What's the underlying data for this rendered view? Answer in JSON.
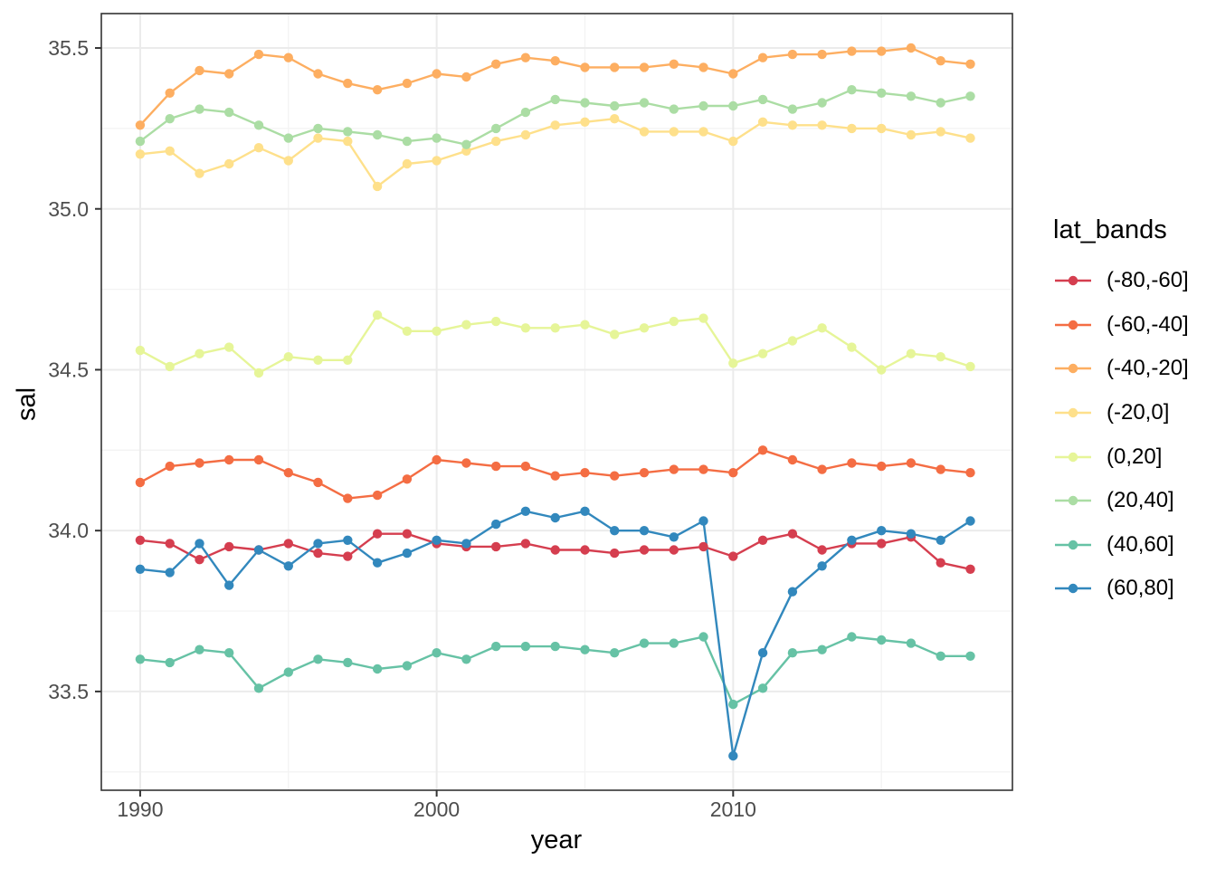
{
  "figure": {
    "background": "#ffffff"
  },
  "chart_data": {
    "type": "line",
    "title": "",
    "xlabel": "year",
    "ylabel": "sal",
    "legend_title": "lat_bands",
    "legend_position": "right",
    "xlim": [
      1988.69,
      2019.42
    ],
    "ylim": [
      33.193,
      35.607
    ],
    "grid": "on",
    "x_ticks": [
      1990,
      2000,
      2010
    ],
    "x_tick_labels": [
      "1990",
      "2000",
      "2010"
    ],
    "x_minor_ticks": [
      1995,
      2005,
      2015
    ],
    "y_ticks": [
      33.5,
      34.0,
      34.5,
      35.0,
      35.5
    ],
    "y_tick_labels": [
      "33.5",
      "34.0",
      "34.5",
      "35.0",
      "35.5"
    ],
    "y_minor_ticks": [
      33.25,
      33.75,
      34.25,
      34.75,
      35.25
    ],
    "style": {
      "panel_border": "#333333",
      "grid_major": "#ebebeb",
      "grid_minor": "#f3f3f3",
      "tick_mark": "#333333",
      "tick_text": "#4d4d4d"
    },
    "x": [
      1990,
      1991,
      1992,
      1993,
      1994,
      1995,
      1996,
      1997,
      1998,
      1999,
      2000,
      2001,
      2002,
      2003,
      2004,
      2005,
      2006,
      2007,
      2008,
      2009,
      2010,
      2011,
      2012,
      2013,
      2014,
      2015,
      2016,
      2017,
      2018
    ],
    "series": [
      {
        "name": "(-80,-60]",
        "color": "#d53e4f",
        "values": [
          33.97,
          33.96,
          33.91,
          33.95,
          33.94,
          33.96,
          33.93,
          33.92,
          33.99,
          33.99,
          33.96,
          33.95,
          33.95,
          33.96,
          33.94,
          33.94,
          33.93,
          33.94,
          33.94,
          33.95,
          33.92,
          33.97,
          33.99,
          33.94,
          33.96,
          33.96,
          33.98,
          33.9,
          33.88
        ]
      },
      {
        "name": "(-60,-40]",
        "color": "#f46d43",
        "values": [
          34.15,
          34.2,
          34.21,
          34.22,
          34.22,
          34.18,
          34.15,
          34.1,
          34.11,
          34.16,
          34.22,
          34.21,
          34.2,
          34.2,
          34.17,
          34.18,
          34.17,
          34.18,
          34.19,
          34.19,
          34.18,
          34.25,
          34.22,
          34.19,
          34.21,
          34.2,
          34.21,
          34.19,
          34.18
        ]
      },
      {
        "name": "(-40,-20]",
        "color": "#fdae61",
        "values": [
          35.26,
          35.36,
          35.43,
          35.42,
          35.48,
          35.47,
          35.42,
          35.39,
          35.37,
          35.39,
          35.42,
          35.41,
          35.45,
          35.47,
          35.46,
          35.44,
          35.44,
          35.44,
          35.45,
          35.44,
          35.42,
          35.47,
          35.48,
          35.48,
          35.49,
          35.49,
          35.5,
          35.46,
          35.45
        ]
      },
      {
        "name": "(-20,0]",
        "color": "#fee08b",
        "values": [
          35.17,
          35.18,
          35.11,
          35.14,
          35.19,
          35.15,
          35.22,
          35.21,
          35.07,
          35.14,
          35.15,
          35.18,
          35.21,
          35.23,
          35.26,
          35.27,
          35.28,
          35.24,
          35.24,
          35.24,
          35.21,
          35.27,
          35.26,
          35.26,
          35.25,
          35.25,
          35.23,
          35.24,
          35.22
        ]
      },
      {
        "name": "(0,20]",
        "color": "#e6f598",
        "values": [
          34.56,
          34.51,
          34.55,
          34.57,
          34.49,
          34.54,
          34.53,
          34.53,
          34.67,
          34.62,
          34.62,
          34.64,
          34.65,
          34.63,
          34.63,
          34.64,
          34.61,
          34.63,
          34.65,
          34.66,
          34.52,
          34.55,
          34.59,
          34.63,
          34.57,
          34.5,
          34.55,
          34.54,
          34.51
        ]
      },
      {
        "name": "(20,40]",
        "color": "#abdda4",
        "values": [
          35.21,
          35.28,
          35.31,
          35.3,
          35.26,
          35.22,
          35.25,
          35.24,
          35.23,
          35.21,
          35.22,
          35.2,
          35.25,
          35.3,
          35.34,
          35.33,
          35.32,
          35.33,
          35.31,
          35.32,
          35.32,
          35.34,
          35.31,
          35.33,
          35.37,
          35.36,
          35.35,
          35.33,
          35.35
        ]
      },
      {
        "name": "(40,60]",
        "color": "#66c2a5",
        "values": [
          33.6,
          33.59,
          33.63,
          33.62,
          33.51,
          33.56,
          33.6,
          33.59,
          33.57,
          33.58,
          33.62,
          33.6,
          33.64,
          33.64,
          33.64,
          33.63,
          33.62,
          33.65,
          33.65,
          33.67,
          33.46,
          33.51,
          33.62,
          33.63,
          33.67,
          33.66,
          33.65,
          33.61,
          33.61
        ]
      },
      {
        "name": "(60,80]",
        "color": "#3288bd",
        "values": [
          33.88,
          33.87,
          33.96,
          33.83,
          33.94,
          33.89,
          33.96,
          33.97,
          33.9,
          33.93,
          33.97,
          33.96,
          34.02,
          34.06,
          34.04,
          34.06,
          34.0,
          34.0,
          33.98,
          34.03,
          33.3,
          33.62,
          33.81,
          33.89,
          33.97,
          34.0,
          33.99,
          33.97,
          34.03
        ]
      }
    ]
  }
}
